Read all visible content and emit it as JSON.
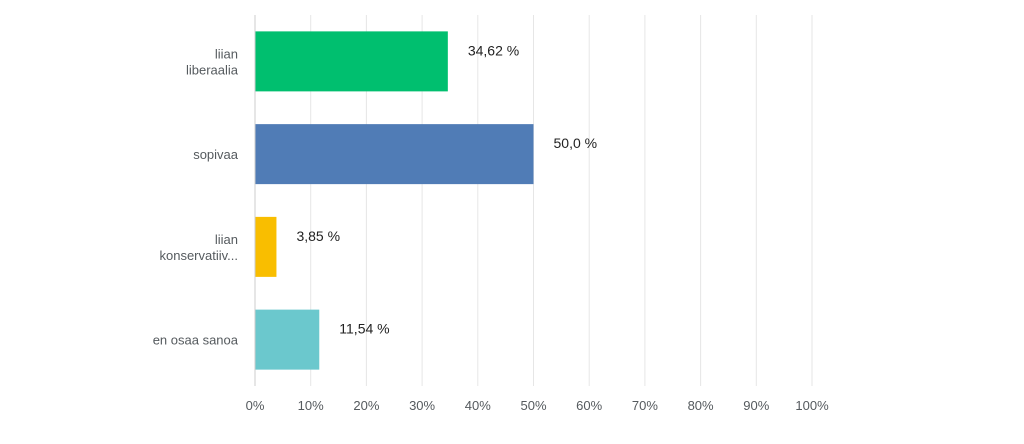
{
  "chart_data": {
    "type": "bar",
    "orientation": "horizontal",
    "categories": [
      [
        "liian",
        "liberaalia"
      ],
      [
        "sopivaa"
      ],
      [
        "liian",
        "konservatiiv..."
      ],
      [
        "en osaa sanoa"
      ]
    ],
    "values": [
      34.62,
      50.0,
      3.85,
      11.54
    ],
    "value_labels": [
      "34,62 %",
      "50,0 %",
      "3,85 %",
      "11,54 %"
    ],
    "colors": [
      "#00bf6f",
      "#507cb6",
      "#f9be00",
      "#6bc8cd"
    ],
    "xlim": [
      0,
      100
    ],
    "x_ticks": [
      0,
      10,
      20,
      30,
      40,
      50,
      60,
      70,
      80,
      90,
      100
    ],
    "x_tick_labels": [
      "0%",
      "10%",
      "20%",
      "30%",
      "40%",
      "50%",
      "60%",
      "70%",
      "80%",
      "90%",
      "100%"
    ],
    "grid": true,
    "legend": "none",
    "title": "",
    "xlabel": "",
    "ylabel": ""
  }
}
